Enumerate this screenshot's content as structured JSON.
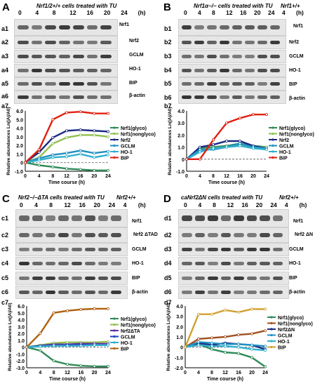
{
  "panels": [
    {
      "letter": "A",
      "title_html": "Nrf1/2+/+ cells treated with TU",
      "title": "Nrf1/2+/+ cells treated with TU",
      "time_labels": [
        "0",
        "4",
        "8",
        "12",
        "16",
        "20",
        "24",
        "(h)"
      ],
      "rows": [
        {
          "id": "a1",
          "label": "Nrf1"
        },
        {
          "id": "a2",
          "label": "Nrf2"
        },
        {
          "id": "a3",
          "label": "GCLM"
        },
        {
          "id": "a4",
          "label": "HO-1"
        },
        {
          "id": "a5",
          "label": "BIP"
        },
        {
          "id": "a6",
          "label": "β-actin"
        }
      ],
      "chart_id": "a7",
      "extra_lane": ""
    },
    {
      "letter": "B",
      "title": "Nrf1α−/− cells treated with TU",
      "title_html": "Nrf1α−/− cells treated with TU",
      "time_labels": [
        "0",
        "4",
        "8",
        "12",
        "16",
        "20",
        "24"
      ],
      "extra_lane": "Nrf1+/+",
      "extra_time": "4",
      "unit": "(h)",
      "rows": [
        {
          "id": "b1",
          "label": "Nrf1"
        },
        {
          "id": "b2",
          "label": "Nrf2"
        },
        {
          "id": "b3",
          "label": "GCLM"
        },
        {
          "id": "b4",
          "label": "HO-1"
        },
        {
          "id": "b5",
          "label": "BIP"
        },
        {
          "id": "b6",
          "label": "β-actin"
        }
      ],
      "chart_id": "b7"
    },
    {
      "letter": "C",
      "title": "Nrf2−/−ΔTA cells treated with TU",
      "time_labels": [
        "0",
        "4",
        "8",
        "12",
        "16",
        "20",
        "24"
      ],
      "extra_lane": "Nrf2+/+",
      "extra_time": "4",
      "unit": "(h)",
      "rows": [
        {
          "id": "c1",
          "label": "Nrf1"
        },
        {
          "id": "c2",
          "label": "Nrf2 ΔTAD"
        },
        {
          "id": "c3",
          "label": "GCLM"
        },
        {
          "id": "c4",
          "label": "HO-1"
        },
        {
          "id": "c5",
          "label": "BIP"
        },
        {
          "id": "c6",
          "label": "β-actin"
        }
      ],
      "chart_id": "c7"
    },
    {
      "letter": "D",
      "title": "caNrf2ΔN cells treated with TU",
      "time_labels": [
        "0",
        "4",
        "8",
        "12",
        "16",
        "20",
        "24"
      ],
      "extra_lane": "Nrf2+/+",
      "extra_time": "4",
      "unit": "(h)",
      "rows": [
        {
          "id": "d1",
          "label": "Nrf1"
        },
        {
          "id": "d2",
          "label": "Nrf2 ΔN"
        },
        {
          "id": "d3",
          "label": "GCLM"
        },
        {
          "id": "d4",
          "label": "HO-1"
        },
        {
          "id": "d5",
          "label": "BIP"
        },
        {
          "id": "d6",
          "label": "β-actin"
        }
      ],
      "chart_id": "d7"
    }
  ],
  "chart_data": [
    {
      "id": "a7",
      "type": "line",
      "x": [
        0,
        4,
        8,
        12,
        16,
        20,
        24
      ],
      "xlabel": "Time course (h)",
      "ylabel": "Relative abundances Ln(|A|/A0)",
      "xticks": [
        "0",
        "4",
        "8",
        "12",
        "16",
        "20",
        "24"
      ],
      "yticks": [
        "-1.0",
        "0",
        "1.0",
        "2.0",
        "3.0",
        "4.0",
        "5.0",
        "6.0"
      ],
      "ylim": [
        -1.0,
        6.0
      ],
      "series": [
        {
          "name": "Nrf1(glyco)",
          "color": "#2e8b57",
          "values": [
            0,
            -0.3,
            -0.5,
            -0.7,
            -0.8,
            -0.9,
            -0.9
          ]
        },
        {
          "name": "Nrf1(nonglyco)",
          "color": "#90c050",
          "values": [
            0,
            0.6,
            2.2,
            2.9,
            3.2,
            3.2,
            3.0
          ]
        },
        {
          "name": "Nrf2",
          "color": "#1a2a80",
          "values": [
            0,
            1.2,
            2.9,
            3.7,
            3.8,
            3.7,
            3.6
          ]
        },
        {
          "name": "GCLM",
          "color": "#2090c0",
          "values": [
            0,
            0.5,
            0.9,
            1.1,
            1.4,
            1.1,
            1.3
          ]
        },
        {
          "name": "HO-1",
          "color": "#30b0d0",
          "values": [
            0,
            0.3,
            0.6,
            0.7,
            1.0,
            0.6,
            0.9
          ]
        },
        {
          "name": "BIP",
          "color": "#e02010",
          "values": [
            0,
            1.5,
            5.0,
            5.8,
            5.9,
            5.7,
            5.7
          ]
        }
      ],
      "legend": [
        "Nrf1(glyco)",
        "Nrf1(nonglyco)",
        "Nrf2",
        "GCLM",
        "HO-1",
        "BIP"
      ]
    },
    {
      "id": "b7",
      "type": "line",
      "x": [
        0,
        4,
        8,
        12,
        16,
        20,
        24
      ],
      "xlabel": "Time course (h)",
      "ylabel": "Relative abundances Ln(|A|/A0)",
      "xticks": [
        "0",
        "4",
        "8",
        "12",
        "16",
        "20",
        "24"
      ],
      "yticks": [
        "-1.0",
        "0",
        "1.0",
        "2.0",
        "3.0",
        "4.0"
      ],
      "ylim": [
        -1.0,
        4.0
      ],
      "series": [
        {
          "name": "Nrf1(glyco)",
          "color": "#2e8b57",
          "values": [
            0,
            0.9,
            1.0,
            1.1,
            1.3,
            1.1,
            1.0
          ]
        },
        {
          "name": "Nrf1(nonglyco)",
          "color": "#90c050",
          "values": [
            0,
            0.8,
            0.9,
            1.0,
            1.2,
            1.0,
            1.0
          ]
        },
        {
          "name": "Nrf2",
          "color": "#1a2a80",
          "values": [
            0,
            1.0,
            1.2,
            1.5,
            1.5,
            1.1,
            0.9
          ]
        },
        {
          "name": "GCLM",
          "color": "#2090c0",
          "values": [
            0,
            0.8,
            0.8,
            1.0,
            1.3,
            1.0,
            0.9
          ]
        },
        {
          "name": "HO-1",
          "color": "#30b0d0",
          "values": [
            0,
            0.6,
            0.9,
            1.0,
            1.1,
            0.9,
            0.8
          ]
        },
        {
          "name": "BIP",
          "color": "#e02010",
          "values": [
            0,
            0.0,
            1.6,
            3.0,
            3.4,
            3.7,
            3.7
          ]
        }
      ],
      "legend": [
        "Nrf1(glyco)",
        "Nrf1(nonglyco)",
        "Nrf2",
        "GCLM",
        "HO-1",
        "BIP"
      ]
    },
    {
      "id": "c7",
      "type": "line",
      "x": [
        0,
        4,
        8,
        12,
        16,
        20,
        24
      ],
      "xlabel": "Time course (h)",
      "ylabel": "Relative abundances Ln(|A|/A0)",
      "xticks": [
        "0",
        "4",
        "8",
        "12",
        "16",
        "20",
        "24"
      ],
      "yticks": [
        "-3.0",
        "-2.0",
        "-1.0",
        "0",
        "1.0",
        "2.0",
        "3.0",
        "4.0",
        "5.0",
        "6.0"
      ],
      "ylim": [
        -3.0,
        6.0
      ],
      "series": [
        {
          "name": "Nrf1(glyco)",
          "color": "#2e8b57",
          "values": [
            0,
            -0.5,
            -2.0,
            -2.5,
            -2.7,
            -2.8,
            -2.8
          ]
        },
        {
          "name": "Nrf1(nonglyco)",
          "color": "#90c050",
          "values": [
            0,
            0.3,
            0.6,
            0.7,
            0.7,
            0.7,
            0.8
          ]
        },
        {
          "name": "Nrf2ΔTA",
          "color": "#6030a0",
          "values": [
            0,
            0.2,
            0.4,
            0.4,
            0.5,
            0.5,
            0.5
          ]
        },
        {
          "name": "GCLM",
          "color": "#2040c0",
          "values": [
            0,
            0.2,
            0.2,
            0.3,
            0.3,
            0.3,
            0.3
          ]
        },
        {
          "name": "HO-1",
          "color": "#30b0d0",
          "values": [
            0,
            0.1,
            0.2,
            0.2,
            0.2,
            0.3,
            0.3
          ]
        },
        {
          "name": "BIP",
          "color": "#b06010",
          "values": [
            0,
            2.0,
            5.0,
            5.3,
            5.5,
            5.6,
            5.6
          ]
        }
      ],
      "legend": [
        "Nrf1(glyco)",
        "Nrf1(nonglyco)",
        "Nrf2ΔTA",
        "GCLM",
        "HO-1",
        "BIP"
      ]
    },
    {
      "id": "d7",
      "type": "line",
      "x": [
        0,
        4,
        8,
        12,
        16,
        20,
        24
      ],
      "xlabel": "Time course (h)",
      "ylabel": "Relative abundances Ln(|A|/A0)",
      "xticks": [
        "0",
        "4",
        "8",
        "12",
        "16",
        "20",
        "24"
      ],
      "yticks": [
        "-2.0",
        "-1.0",
        "0",
        "1.0",
        "2.0",
        "3.0",
        "4.0"
      ],
      "ylim": [
        -2.0,
        4.0
      ],
      "series": [
        {
          "name": "Nrf1(glyco)",
          "color": "#2e8b57",
          "values": [
            0,
            0.3,
            -0.2,
            -0.5,
            -0.6,
            -1.0,
            -1.9
          ]
        },
        {
          "name": "Nrf1(nonglyco)",
          "color": "#a05020",
          "values": [
            0,
            0.8,
            0.9,
            1.0,
            1.2,
            1.3,
            1.6
          ]
        },
        {
          "name": "Nrf2ΔN",
          "color": "#1a2a80",
          "values": [
            0,
            0.4,
            0.2,
            0.4,
            0.3,
            0.2,
            -0.2
          ]
        },
        {
          "name": "GCLM",
          "color": "#2090c0",
          "values": [
            0,
            0.5,
            0.4,
            0.3,
            0.3,
            0.2,
            0.1
          ]
        },
        {
          "name": "HO-1",
          "color": "#30b0d0",
          "values": [
            0,
            0.2,
            0.1,
            0.1,
            0.0,
            -0.2,
            -0.3
          ]
        },
        {
          "name": "BIP",
          "color": "#d0a030",
          "values": [
            0,
            3.2,
            3.2,
            3.6,
            3.4,
            3.7,
            3.7
          ]
        }
      ],
      "legend": [
        "Nrf1(glyco)",
        "Nrf1(nonglyco)",
        "Nrf2ΔN",
        "GCLM",
        "HO-1",
        "BIP"
      ]
    }
  ]
}
